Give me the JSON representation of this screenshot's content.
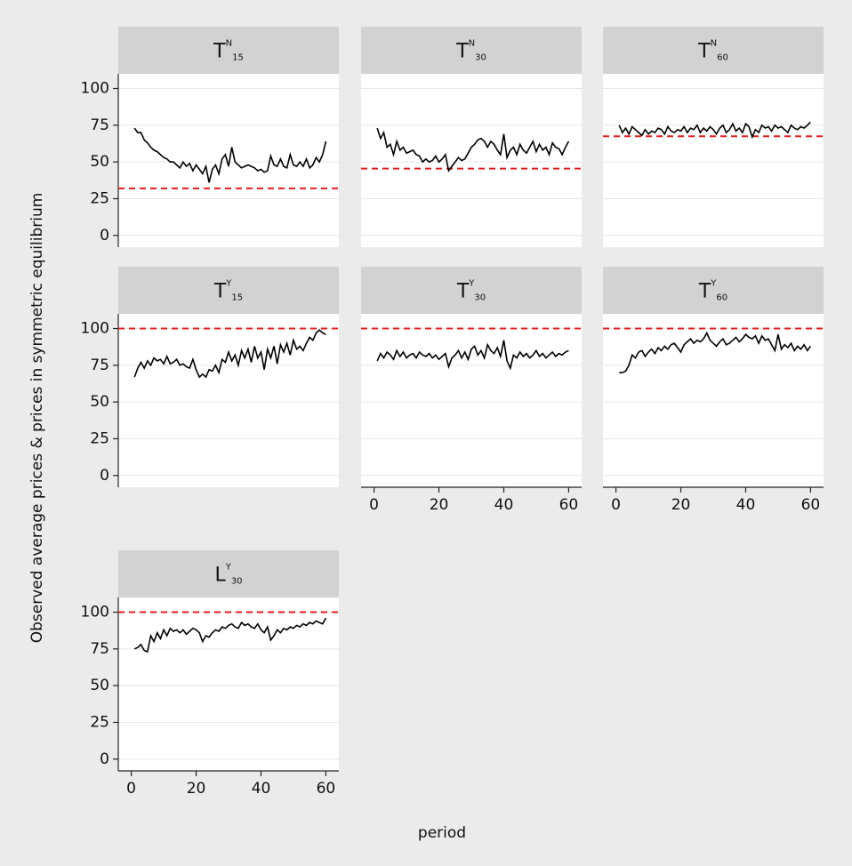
{
  "chart_data": {
    "type": "line",
    "y_label": "Observed average prices & prices in symmetric equilibrium",
    "x_label": "period",
    "x": [
      1,
      2,
      3,
      4,
      5,
      6,
      7,
      8,
      9,
      10,
      11,
      12,
      13,
      14,
      15,
      16,
      17,
      18,
      19,
      20,
      21,
      22,
      23,
      24,
      25,
      26,
      27,
      28,
      29,
      30,
      31,
      32,
      33,
      34,
      35,
      36,
      37,
      38,
      39,
      40,
      41,
      42,
      43,
      44,
      45,
      46,
      47,
      48,
      49,
      50,
      51,
      52,
      53,
      54,
      55,
      56,
      57,
      58,
      59,
      60
    ],
    "xlim": [
      -4,
      64
    ],
    "ylim": [
      -8,
      110
    ],
    "xticks": [
      0,
      20,
      40,
      60
    ],
    "yticks": [
      0,
      25,
      50,
      75,
      100
    ],
    "grid": true,
    "line_color": "#000000",
    "ref_color": "#e02020",
    "panels": [
      {
        "title": {
          "base": "T",
          "sup": "N",
          "sub": "15"
        },
        "ref_value": 32,
        "values": [
          73,
          70,
          70,
          65,
          63,
          60,
          58,
          57,
          55,
          53,
          52,
          50,
          50,
          48,
          46,
          50,
          47,
          49,
          44,
          48,
          45,
          42,
          47,
          36,
          45,
          48,
          42,
          52,
          55,
          47,
          60,
          50,
          48,
          46,
          47,
          48,
          47,
          46,
          44,
          45,
          43,
          44,
          54,
          48,
          47,
          52,
          47,
          46,
          55,
          48,
          47,
          50,
          47,
          52,
          46,
          48,
          53,
          50,
          55,
          64
        ]
      },
      {
        "title": {
          "base": "T",
          "sup": "N",
          "sub": "30"
        },
        "ref_value": 45.5,
        "values": [
          73,
          66,
          70,
          60,
          62,
          55,
          64,
          58,
          60,
          56,
          57,
          58,
          55,
          54,
          50,
          52,
          50,
          51,
          54,
          50,
          52,
          55,
          44,
          47,
          50,
          53,
          51,
          52,
          56,
          60,
          62,
          65,
          66,
          64,
          60,
          64,
          62,
          58,
          55,
          69,
          53,
          58,
          60,
          55,
          62,
          58,
          56,
          60,
          64,
          57,
          62,
          58,
          60,
          55,
          63,
          60,
          59,
          55,
          60,
          64
        ]
      },
      {
        "title": {
          "base": "T",
          "sup": "N",
          "sub": "60"
        },
        "ref_value": 67.5,
        "values": [
          75,
          70,
          73,
          69,
          74,
          72,
          70,
          68,
          72,
          69,
          71,
          70,
          73,
          72,
          69,
          74,
          71,
          70,
          72,
          71,
          74,
          70,
          73,
          72,
          75,
          70,
          73,
          71,
          74,
          72,
          69,
          73,
          75,
          70,
          72,
          76,
          71,
          73,
          70,
          76,
          74,
          67,
          72,
          70,
          75,
          73,
          74,
          71,
          75,
          73,
          74,
          72,
          70,
          75,
          73,
          72,
          74,
          73,
          75,
          77
        ]
      },
      {
        "title": {
          "base": "T",
          "sup": "Y",
          "sub": "15"
        },
        "ref_value": 100,
        "values": [
          67,
          73,
          77,
          73,
          78,
          75,
          80,
          78,
          79,
          76,
          81,
          76,
          77,
          79,
          75,
          76,
          74,
          73,
          79,
          72,
          67,
          69,
          67,
          72,
          71,
          75,
          70,
          79,
          77,
          84,
          78,
          82,
          75,
          85,
          80,
          86,
          77,
          88,
          80,
          84,
          72,
          86,
          80,
          88,
          76,
          89,
          84,
          90,
          82,
          92,
          86,
          88,
          85,
          90,
          94,
          92,
          97,
          99,
          97,
          96
        ]
      },
      {
        "title": {
          "base": "T",
          "sup": "Y",
          "sub": "30"
        },
        "ref_value": 100,
        "values": [
          78,
          83,
          80,
          84,
          82,
          79,
          85,
          81,
          84,
          80,
          82,
          83,
          80,
          84,
          82,
          81,
          83,
          80,
          82,
          79,
          81,
          83,
          74,
          80,
          82,
          85,
          80,
          84,
          79,
          86,
          88,
          82,
          85,
          80,
          89,
          85,
          83,
          87,
          81,
          92,
          78,
          73,
          82,
          80,
          84,
          81,
          83,
          80,
          82,
          85,
          81,
          83,
          80,
          82,
          84,
          81,
          83,
          82,
          84,
          85
        ]
      },
      {
        "title": {
          "base": "T",
          "sup": "Y",
          "sub": "60"
        },
        "ref_value": 100,
        "values": [
          70,
          70,
          71,
          75,
          82,
          80,
          84,
          85,
          81,
          84,
          86,
          83,
          87,
          85,
          88,
          86,
          89,
          90,
          87,
          84,
          89,
          91,
          93,
          90,
          92,
          91,
          93,
          97,
          92,
          90,
          88,
          91,
          93,
          89,
          90,
          92,
          94,
          91,
          93,
          96,
          94,
          93,
          95,
          90,
          95,
          92,
          93,
          89,
          85,
          96,
          86,
          89,
          87,
          90,
          85,
          88,
          86,
          89,
          85,
          88
        ]
      },
      {
        "title": {
          "base": "L",
          "sup": "Y",
          "sub": "30"
        },
        "ref_value": 100,
        "values": [
          75,
          76,
          78,
          74,
          73,
          84,
          80,
          86,
          82,
          88,
          84,
          89,
          87,
          88,
          86,
          88,
          85,
          87,
          89,
          88,
          86,
          80,
          84,
          83,
          86,
          88,
          87,
          90,
          89,
          91,
          92,
          90,
          89,
          93,
          91,
          92,
          90,
          89,
          92,
          88,
          86,
          90,
          81,
          84,
          88,
          86,
          89,
          88,
          90,
          89,
          91,
          90,
          92,
          91,
          93,
          92,
          94,
          93,
          92,
          96
        ]
      }
    ]
  }
}
